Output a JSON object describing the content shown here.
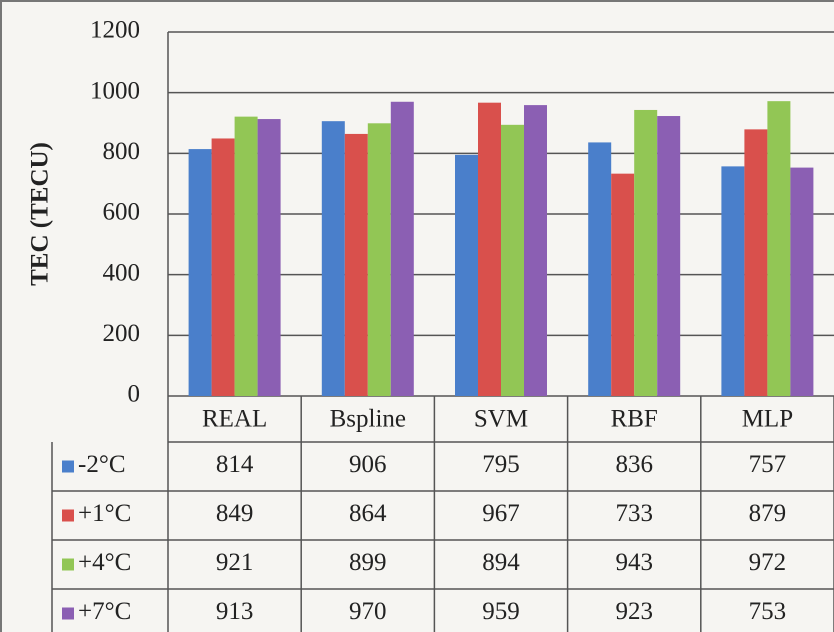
{
  "chart_data": {
    "type": "bar",
    "y_label": "TEC (TECU)",
    "categories": [
      "REAL",
      "Bspline",
      "SVM",
      "RBF",
      "MLP"
    ],
    "series": [
      {
        "name": "-2°C",
        "color": "#4a7fcb",
        "values": [
          814,
          906,
          795,
          836,
          757
        ]
      },
      {
        "name": "+1°C",
        "color": "#d9504c",
        "values": [
          849,
          864,
          967,
          733,
          879
        ]
      },
      {
        "name": "+4°C",
        "color": "#92c655",
        "values": [
          921,
          899,
          894,
          943,
          972
        ]
      },
      {
        "name": "+7°C",
        "color": "#8b5fb3",
        "values": [
          913,
          970,
          959,
          923,
          753
        ]
      }
    ],
    "ylim": [
      0,
      1200
    ],
    "yticks": [
      0,
      200,
      400,
      600,
      800,
      1000,
      1200
    ],
    "grid": true
  }
}
